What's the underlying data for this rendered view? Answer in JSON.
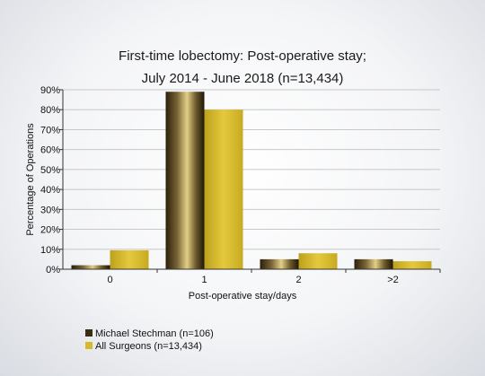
{
  "chart_data": {
    "type": "bar",
    "title_lines": [
      "First-time lobectomy: Post-operative stay;",
      "July 2014 - June 2018 (n=13,434)"
    ],
    "xlabel": "Post-operative stay/days",
    "ylabel": "Percentage of Operations",
    "categories": [
      "0",
      "1",
      "2",
      ">2"
    ],
    "ylim": [
      0,
      90
    ],
    "yticks": [
      "0%",
      "10%",
      "20%",
      "30%",
      "40%",
      "50%",
      "60%",
      "70%",
      "80%",
      "90%"
    ],
    "grid": true,
    "legend_position": "bottom-left",
    "series": [
      {
        "name": "Michael Stechman (n=106)",
        "values": [
          2,
          89,
          5,
          5
        ],
        "color": "#3a2d12"
      },
      {
        "name": "All Surgeons (n=13,434)",
        "values": [
          9.5,
          80,
          8,
          4
        ],
        "color": "#d6b928"
      }
    ]
  }
}
